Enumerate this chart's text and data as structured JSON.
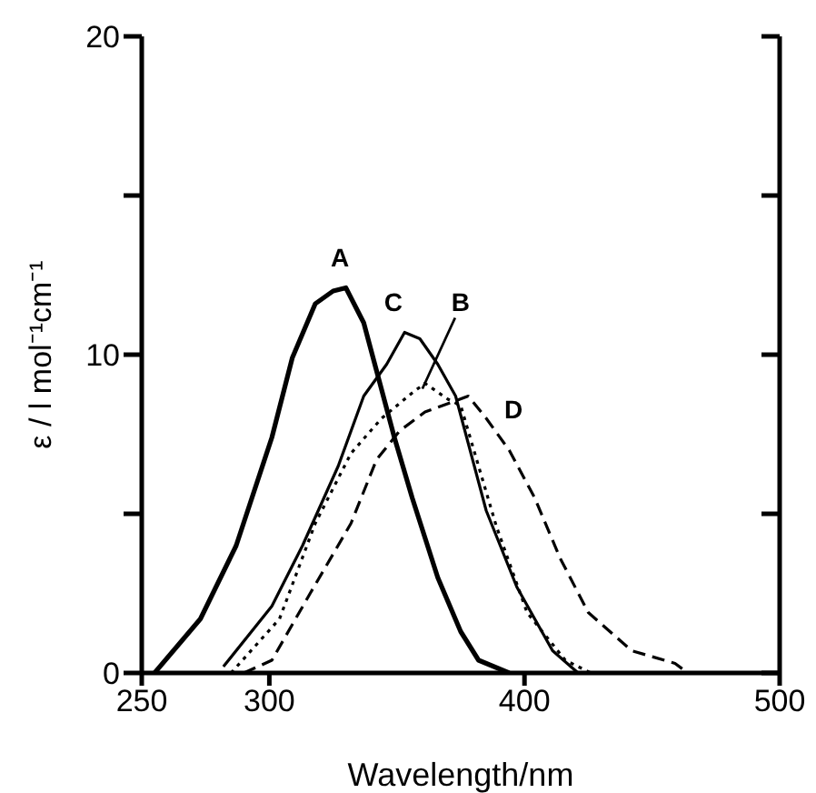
{
  "chart_data": {
    "type": "line",
    "xlabel": "Wavelength/nm",
    "ylabel": "ε / l mol⁻¹cm⁻¹",
    "xlim": [
      250,
      500
    ],
    "xticks": [
      250,
      300,
      400,
      500
    ],
    "ylim": [
      0,
      20
    ],
    "yticks": [
      0,
      {
        "value": 5,
        "label": null
      },
      10,
      {
        "value": 15,
        "label": null
      },
      20
    ],
    "marker": "none",
    "series": [
      {
        "name": "A",
        "color": "#000000",
        "line_style": "solid",
        "x": [
          255,
          273,
          287,
          301,
          309,
          318,
          325,
          330,
          337,
          342,
          349,
          356,
          366,
          375,
          382,
          394
        ],
        "values": [
          0,
          1.7,
          4,
          7.4,
          9.9,
          11.6,
          12,
          12.1,
          11,
          9.5,
          7.4,
          5.5,
          3,
          1.3,
          0.4,
          0
        ]
      },
      {
        "name": "B",
        "color": "#000000",
        "line_style": "dotted",
        "x": [
          285,
          304,
          318,
          332,
          344,
          356,
          361,
          370,
          375,
          382,
          389,
          401,
          416,
          426
        ],
        "values": [
          0,
          1.7,
          4.7,
          6.9,
          8,
          8.8,
          9.1,
          8.6,
          8.4,
          6.5,
          4.6,
          1.9,
          0.4,
          0
        ]
      },
      {
        "name": "C",
        "color": "#000000",
        "line_style": "solid",
        "x": [
          282,
          301,
          313,
          327,
          337,
          346,
          353,
          359,
          366,
          373,
          385,
          397,
          411,
          421
        ],
        "values": [
          0.2,
          2.1,
          4,
          6.5,
          8.7,
          9.7,
          10.7,
          10.5,
          9.7,
          8.7,
          5.1,
          2.7,
          0.7,
          0
        ]
      },
      {
        "name": "D",
        "color": "#000000",
        "line_style": "dashed",
        "x": [
          290,
          301,
          316,
          332,
          342,
          351,
          361,
          378,
          385,
          394,
          404,
          414,
          425,
          442,
          459,
          464
        ],
        "values": [
          0,
          0.4,
          2.5,
          4.7,
          6.7,
          7.6,
          8.2,
          8.7,
          8,
          7,
          5.5,
          3.6,
          1.9,
          0.7,
          0.3,
          0
        ]
      }
    ]
  }
}
